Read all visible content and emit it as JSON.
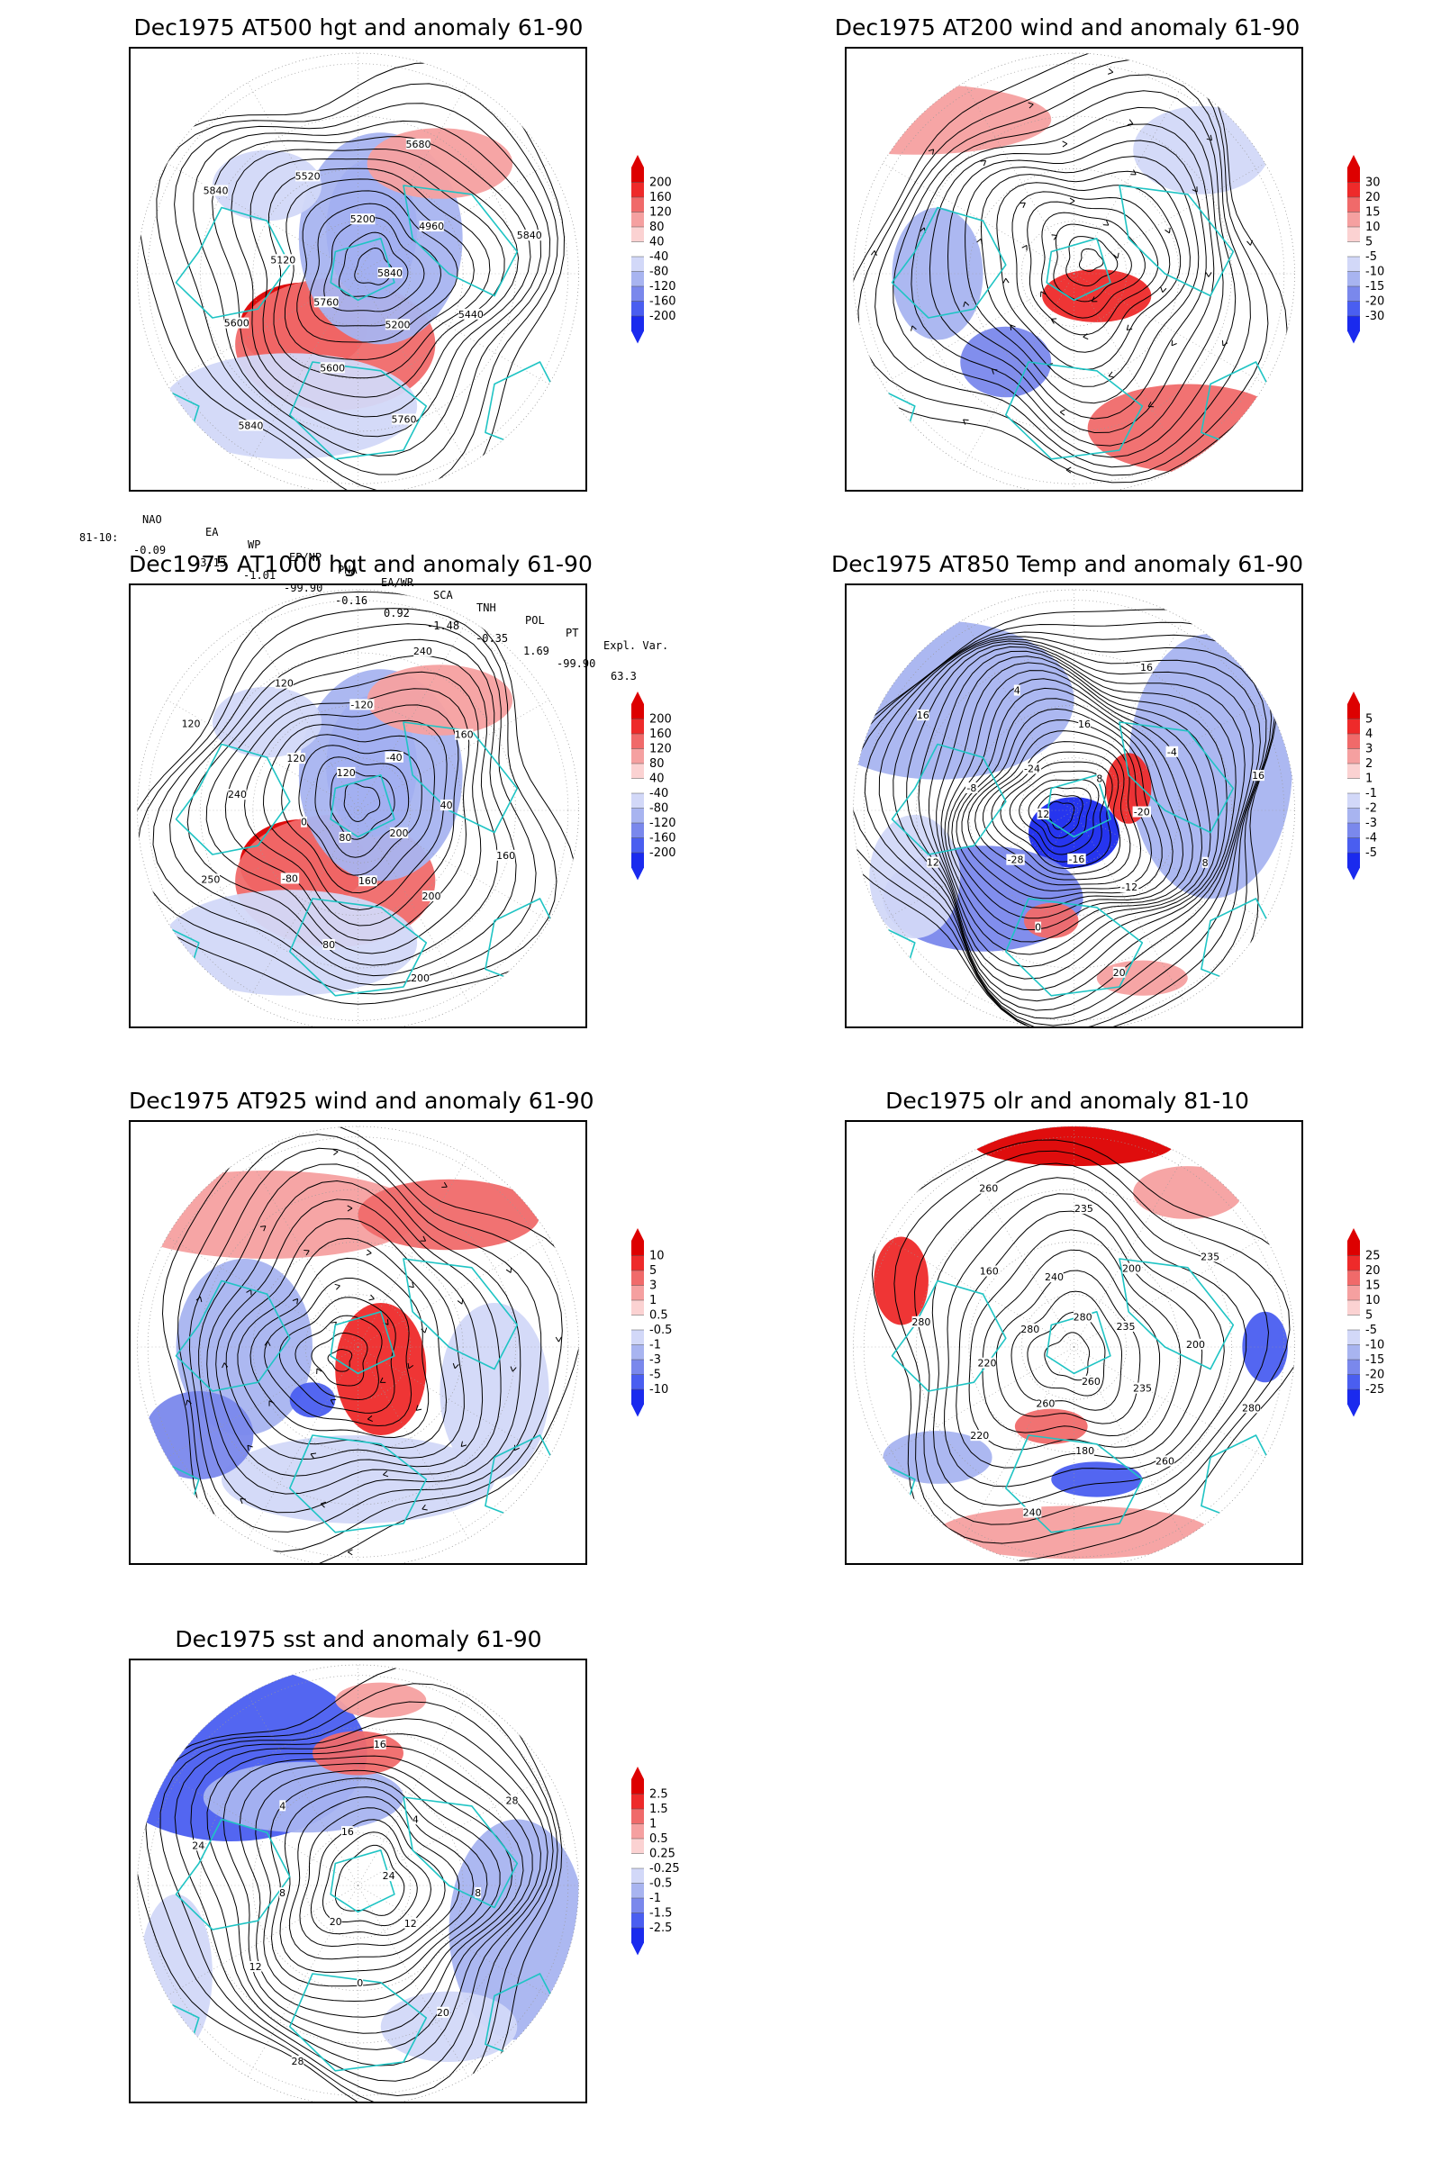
{
  "panels": [
    {
      "title": "Dec1975 AT500 hgt and anomaly 61-90",
      "colorbar": [
        "200",
        "160",
        "120",
        "80",
        "40",
        "-40",
        "-80",
        "-120",
        "-160",
        "-200"
      ],
      "contour_labels": [
        "5840",
        "5760",
        "5200",
        "5200",
        "5120",
        "4960",
        "5600",
        "5520",
        "5440",
        "5600",
        "5680",
        "5760",
        "5840",
        "5840",
        "5840"
      ]
    },
    {
      "title": "Dec1975 AT200 wind and anomaly 61-90",
      "colorbar": [
        "30",
        "20",
        "15",
        "10",
        "5",
        "-5",
        "-10",
        "-15",
        "-20",
        "-30"
      ],
      "contour_labels": []
    },
    {
      "title": "Dec1975 AT1000 hgt and anomaly 61-90",
      "colorbar": [
        "200",
        "160",
        "120",
        "80",
        "40",
        "-40",
        "-80",
        "-120",
        "-160",
        "-200"
      ],
      "contour_labels": [
        "80",
        "120",
        "200",
        "0",
        "-40",
        "160",
        "120",
        "40",
        "-80",
        "-120",
        "200",
        "240",
        "160",
        "80",
        "120",
        "160",
        "250",
        "240",
        "200",
        "120"
      ]
    },
    {
      "title": "Dec1975 AT850 Temp and anomaly 61-90",
      "colorbar": [
        "5",
        "4",
        "3",
        "2",
        "1",
        "-1",
        "-2",
        "-3",
        "-4",
        "-5"
      ],
      "contour_labels": [
        "12",
        "8",
        "-16",
        "-24",
        "-20",
        "-28",
        "16",
        "-12",
        "-8",
        "-4",
        "0",
        "4",
        "8",
        "12",
        "16",
        "20",
        "16",
        "16"
      ]
    },
    {
      "title": "Dec1975 AT925 wind and anomaly 61-90",
      "colorbar": [
        "10",
        "5",
        "3",
        "1",
        "0.5",
        "-0.5",
        "-1",
        "-3",
        "-5",
        "-10"
      ],
      "contour_labels": []
    },
    {
      "title": "Dec1975 olr and anomaly 81-10",
      "colorbar": [
        "25",
        "20",
        "15",
        "10",
        "5",
        "-5",
        "-10",
        "-15",
        "-20",
        "-25"
      ],
      "contour_labels": [
        "280",
        "260",
        "280",
        "235",
        "260",
        "240",
        "235",
        "220",
        "200",
        "180",
        "160",
        "200",
        "220",
        "235",
        "260",
        "280",
        "235",
        "240",
        "260",
        "280"
      ]
    },
    {
      "title": "Dec1975 sst and anomaly 61-90",
      "colorbar": [
        "2.5",
        "1.5",
        "1",
        "0.5",
        "0.25",
        "-0.25",
        "-0.5",
        "-1",
        "-1.5",
        "-2.5"
      ],
      "contour_labels": [
        "24",
        "20",
        "16",
        "12",
        "8",
        "4",
        "0",
        "4",
        "8",
        "12",
        "16",
        "20",
        "24",
        "28",
        "28"
      ]
    }
  ],
  "teleconnection": {
    "headers": [
      "NAO",
      "EA",
      "WP",
      "EP/NP",
      "PNA",
      "EA/WR",
      "SCA",
      "TNH",
      "POL",
      "PT",
      "Expl. Var."
    ],
    "row_label": "81-10:",
    "values": [
      "-0.09",
      "-3.13",
      "-1.01",
      "-99.90",
      "-0.16",
      "0.92",
      "-1.48",
      "-0.35",
      "1.69",
      "-99.90",
      "63.3"
    ]
  },
  "colors": {
    "positive": [
      "#dd0000",
      "#ee2a2a",
      "#f06a6a",
      "#f5a0a0",
      "#fbd2d2"
    ],
    "neutral": "#ffffff",
    "negative": [
      "#d2d8f8",
      "#a8b4f0",
      "#7a88ec",
      "#4a5ef0",
      "#1a2aee"
    ],
    "coastline": "#1fc4c4",
    "contour": "#000000"
  }
}
